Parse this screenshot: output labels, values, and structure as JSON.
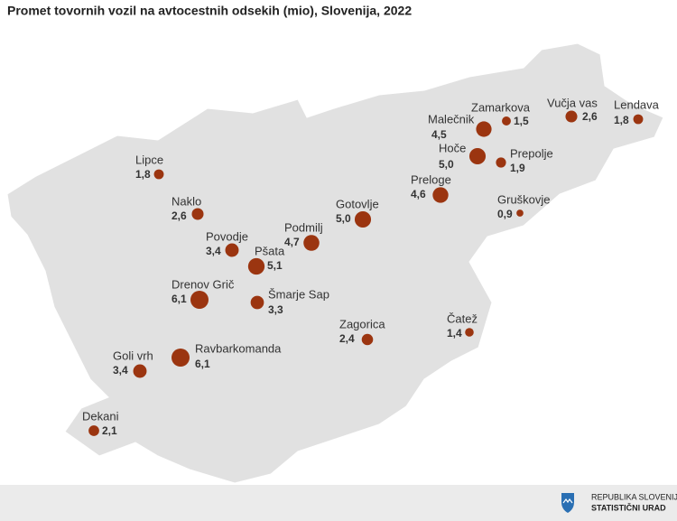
{
  "chart_data": {
    "type": "bubble-map",
    "title": "Promet tovornih vozil na avtocestnih odsekih (mio), Slovenija, 2022",
    "categories": [
      "Lipce",
      "Naklo",
      "Povodje",
      "Pšata",
      "Drenov Grič",
      "Šmarje Sap",
      "Goli vrh",
      "Ravbarkomanda",
      "Dekani",
      "Podmilj",
      "Gotovlje",
      "Zagorica",
      "Preloge",
      "Malečnik",
      "Zamarkova",
      "Hoče",
      "Prepolje",
      "Vučja vas",
      "Lendava",
      "Gruškovje",
      "Čatež"
    ],
    "values": [
      1.8,
      2.6,
      3.4,
      5.1,
      6.1,
      3.3,
      3.4,
      6.1,
      2.1,
      4.7,
      5.0,
      2.4,
      4.6,
      4.5,
      1.5,
      5.0,
      1.9,
      2.6,
      1.8,
      0.9,
      1.4
    ],
    "value_labels": [
      "1,8",
      "2,6",
      "3,4",
      "5,1",
      "6,1",
      "3,3",
      "3,4",
      "6,1",
      "2,1",
      "4,7",
      "5,0",
      "2,4",
      "4,6",
      "4,5",
      "1,5",
      "5,0",
      "1,9",
      "2,6",
      "1,8",
      "0,9",
      "1,4"
    ],
    "color": "#9b3510"
  },
  "footer": {
    "line1": "REPUBLIKA SLOVENIJA",
    "line2": "STATISTIČNI URAD"
  }
}
